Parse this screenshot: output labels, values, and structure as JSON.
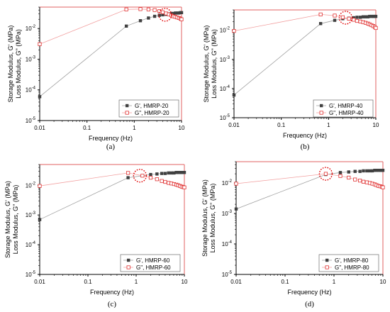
{
  "colors": {
    "gprime": "#404040",
    "gdouble": "#e03030",
    "gprime_line": "#a0a0a0",
    "gdouble_line": "#f2a0a0",
    "crossover": "#e00000"
  },
  "chart_data": [
    {
      "type": "scatter",
      "panel_label": "(a)",
      "xlabel": "Frequency (Hz)",
      "ylabel_lines": [
        "Storage Modulus, G' (MPa)",
        "Loss Modulus, G\" (MPa)"
      ],
      "xscale": "log",
      "yscale": "log",
      "xlim": [
        0.01,
        10
      ],
      "ylim": [
        1e-05,
        0.05
      ],
      "x_ticks": [
        0.01,
        0.1,
        1,
        10
      ],
      "x_tick_labels": [
        "0.01",
        "0.1",
        "1",
        "10"
      ],
      "y_ticks": [
        1e-05,
        0.0001,
        0.001,
        0.01
      ],
      "y_tick_labels": [
        "10-5",
        "10-4",
        "10-3",
        "10-2"
      ],
      "legend_position": "lower-right",
      "crossover": {
        "x": 4.5,
        "y": 0.028
      },
      "series": [
        {
          "name": "G', HMRP-20",
          "marker": "filled-square",
          "color": "#404040",
          "x": [
            0.01,
            0.68,
            1.35,
            2.0,
            2.7,
            3.4,
            4.0,
            4.7,
            5.4,
            6.1,
            6.8,
            7.4,
            8.1,
            8.8,
            9.5,
            10
          ],
          "y": [
            6e-05,
            0.012,
            0.018,
            0.022,
            0.025,
            0.027,
            0.028,
            0.029,
            0.03,
            0.031,
            0.031,
            0.032,
            0.032,
            0.032,
            0.033,
            0.033
          ]
        },
        {
          "name": "G\", HMRP-20",
          "marker": "open-square",
          "color": "#e03030",
          "x": [
            0.01,
            0.68,
            1.35,
            2.0,
            2.7,
            3.4,
            4.0,
            4.7,
            5.4,
            6.1,
            6.8,
            7.4,
            8.1,
            8.8,
            9.5,
            10
          ],
          "y": [
            0.0031,
            0.042,
            0.043,
            0.042,
            0.04,
            0.037,
            0.034,
            0.031,
            0.029,
            0.027,
            0.025,
            0.024,
            0.023,
            0.022,
            0.021,
            0.02
          ]
        }
      ]
    },
    {
      "type": "scatter",
      "panel_label": "(b)",
      "xlabel": "Frequency (Hz)",
      "ylabel_lines": [
        "Storage Modulus, G' (MPa)",
        "Loss Modulus, G\" (MPa)"
      ],
      "xscale": "log",
      "yscale": "log",
      "xlim": [
        0.01,
        10
      ],
      "ylim": [
        1e-05,
        0.05
      ],
      "x_ticks": [
        0.01,
        0.1,
        1,
        10
      ],
      "x_tick_labels": [
        "0.01",
        "0.1",
        "1",
        "10"
      ],
      "y_ticks": [
        1e-05,
        0.0001,
        0.001,
        0.01
      ],
      "y_tick_labels": [
        "10-5",
        "10-4",
        "10-3",
        "10-2"
      ],
      "legend_position": "lower-right",
      "crossover": {
        "x": 2.3,
        "y": 0.027
      },
      "series": [
        {
          "name": "G', HMRP-40",
          "marker": "filled-square",
          "color": "#404040",
          "x": [
            0.01,
            0.68,
            1.35,
            2.0,
            2.7,
            3.4,
            4.0,
            4.7,
            5.4,
            6.1,
            6.8,
            7.4,
            8.1,
            8.8,
            9.5,
            10
          ],
          "y": [
            6e-05,
            0.017,
            0.022,
            0.025,
            0.026,
            0.027,
            0.028,
            0.028,
            0.029,
            0.029,
            0.029,
            0.03,
            0.03,
            0.03,
            0.03,
            0.03
          ]
        },
        {
          "name": "G\", HMRP-40",
          "marker": "open-square",
          "color": "#e03030",
          "x": [
            0.01,
            0.68,
            1.35,
            2.0,
            2.7,
            3.4,
            4.0,
            4.7,
            5.4,
            6.1,
            6.8,
            7.4,
            8.1,
            8.8,
            9.5,
            10
          ],
          "y": [
            0.0095,
            0.035,
            0.032,
            0.028,
            0.025,
            0.023,
            0.021,
            0.02,
            0.019,
            0.018,
            0.017,
            0.016,
            0.015,
            0.014,
            0.013,
            0.012
          ]
        }
      ]
    },
    {
      "type": "scatter",
      "panel_label": "(c)",
      "xlabel": "Frequency (Hz)",
      "ylabel_lines": [
        "Storage Modulus, G' (MPa)",
        "Loss Modulus, G\" (MPa)"
      ],
      "xscale": "log",
      "yscale": "log",
      "xlim": [
        0.01,
        10
      ],
      "ylim": [
        1e-05,
        0.05
      ],
      "x_ticks": [
        0.01,
        0.1,
        1,
        10
      ],
      "x_tick_labels": [
        "0.01",
        "0.1",
        "1",
        "10"
      ],
      "y_ticks": [
        1e-05,
        0.0001,
        0.001,
        0.01
      ],
      "y_tick_labels": [
        "10-5",
        "10-4",
        "10-3",
        "10-2"
      ],
      "legend_position": "lower-right",
      "crossover": {
        "x": 1.2,
        "y": 0.021
      },
      "series": [
        {
          "name": "G', HMRP-60",
          "marker": "filled-square",
          "color": "#404040",
          "x": [
            0.01,
            0.68,
            1.35,
            2.0,
            2.7,
            3.4,
            4.0,
            4.7,
            5.4,
            6.1,
            6.8,
            7.4,
            8.1,
            8.8,
            9.5,
            10
          ],
          "y": [
            0.0007,
            0.018,
            0.021,
            0.023,
            0.024,
            0.025,
            0.025,
            0.026,
            0.026,
            0.026,
            0.027,
            0.027,
            0.027,
            0.027,
            0.027,
            0.027
          ]
        },
        {
          "name": "G\", HMRP-60",
          "marker": "open-square",
          "color": "#e03030",
          "x": [
            0.01,
            0.68,
            1.35,
            2.0,
            2.7,
            3.4,
            4.0,
            4.7,
            5.4,
            6.1,
            6.8,
            7.4,
            8.1,
            8.8,
            9.5,
            10
          ],
          "y": [
            0.0095,
            0.026,
            0.021,
            0.018,
            0.016,
            0.014,
            0.013,
            0.012,
            0.0115,
            0.011,
            0.0105,
            0.01,
            0.0095,
            0.009,
            0.0087,
            0.0085
          ]
        }
      ]
    },
    {
      "type": "scatter",
      "panel_label": "(d)",
      "xlabel": "Frequency (Hz)",
      "ylabel_lines": [
        "Storage Modulus, G' (MPa)",
        "Loss Modulus, G\" (MPa)"
      ],
      "xscale": "log",
      "yscale": "log",
      "xlim": [
        0.01,
        10
      ],
      "ylim": [
        1e-05,
        0.05
      ],
      "x_ticks": [
        0.01,
        0.1,
        1,
        10
      ],
      "x_tick_labels": [
        "0.01",
        "0.1",
        "1",
        "10"
      ],
      "y_ticks": [
        1e-05,
        0.0001,
        0.001,
        0.01
      ],
      "y_tick_labels": [
        "10-5",
        "10-4",
        "10-3",
        "10-2"
      ],
      "legend_position": "lower-right",
      "crossover": {
        "x": 0.68,
        "y": 0.02
      },
      "series": [
        {
          "name": "G', HMRP-80",
          "marker": "filled-square",
          "color": "#404040",
          "x": [
            0.01,
            0.68,
            1.35,
            2.0,
            2.7,
            3.4,
            4.0,
            4.7,
            5.4,
            6.1,
            6.8,
            7.4,
            8.1,
            8.8,
            9.5,
            10
          ],
          "y": [
            0.0014,
            0.019,
            0.022,
            0.023,
            0.024,
            0.024,
            0.025,
            0.025,
            0.025,
            0.025,
            0.026,
            0.026,
            0.026,
            0.026,
            0.026,
            0.026
          ]
        },
        {
          "name": "G\", HMRP-80",
          "marker": "open-square",
          "color": "#e03030",
          "x": [
            0.01,
            0.68,
            1.35,
            2.0,
            2.7,
            3.4,
            4.0,
            4.7,
            5.4,
            6.1,
            6.8,
            7.4,
            8.1,
            8.8,
            9.5,
            10
          ],
          "y": [
            0.0095,
            0.02,
            0.017,
            0.015,
            0.013,
            0.012,
            0.011,
            0.0105,
            0.01,
            0.0095,
            0.009,
            0.0085,
            0.008,
            0.0078,
            0.0075,
            0.0072
          ]
        }
      ]
    }
  ]
}
